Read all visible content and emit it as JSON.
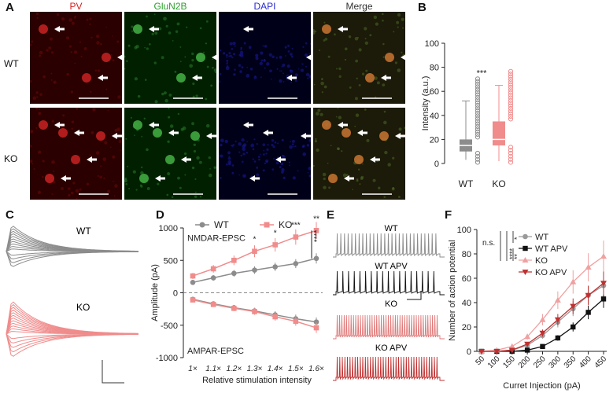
{
  "panels": {
    "A": "A",
    "B": "B",
    "C": "C",
    "D": "D",
    "E": "E",
    "F": "F"
  },
  "panelA": {
    "columns": [
      "PV",
      "GluN2B",
      "DAPI",
      "Merge"
    ],
    "column_colors": [
      "#d42020",
      "#2aa02a",
      "#2b2bd0",
      "#333333"
    ],
    "rows": [
      "WT",
      "KO"
    ]
  },
  "chart_data": [
    {
      "id": "B",
      "type": "box",
      "ylabel": "Intensity (a.u.)",
      "ylim": [
        0,
        100
      ],
      "yticks": [
        0,
        20,
        40,
        60,
        80,
        100
      ],
      "categories": [
        "WT",
        "KO"
      ],
      "series": [
        {
          "name": "WT",
          "color": "#8c8c8c",
          "median": 15,
          "q1": 10,
          "q3": 20,
          "whisker_low": 3,
          "whisker_high": 52
        },
        {
          "name": "KO",
          "color": "#f08c8c",
          "median": 20,
          "q1": 15,
          "q3": 35,
          "whisker_low": 2,
          "whisker_high": 65
        }
      ],
      "annotation": "***"
    },
    {
      "id": "D",
      "type": "line",
      "xlabel": "Relative stimulation intensity",
      "ylabel": "Amplitude (pA)",
      "categories": [
        "1×",
        "1.1×",
        "1.2×",
        "1.3×",
        "1.4×",
        "1.5×",
        "1.6×"
      ],
      "ylim": [
        -1000,
        1000
      ],
      "yticks": [
        -1000,
        -500,
        0,
        500,
        1000
      ],
      "legend": [
        "WT",
        "KO"
      ],
      "series": [
        {
          "name": "WT NMDAR",
          "color": "#8c8c8c",
          "values": [
            160,
            230,
            300,
            350,
            400,
            450,
            530
          ]
        },
        {
          "name": "KO NMDAR",
          "color": "#f08c8c",
          "values": [
            260,
            370,
            500,
            640,
            740,
            860,
            960
          ]
        },
        {
          "name": "WT AMPAR",
          "color": "#8c8c8c",
          "values": [
            -100,
            -170,
            -230,
            -280,
            -340,
            -400,
            -450
          ]
        },
        {
          "name": "KO AMPAR",
          "color": "#f08c8c",
          "values": [
            -110,
            -180,
            -240,
            -290,
            -370,
            -440,
            -540
          ]
        }
      ],
      "annotations": [
        "NMDAR-EPSC",
        "AMPAR-EPSC"
      ],
      "significance": [
        "",
        "",
        "",
        "*",
        "*",
        "***",
        "**"
      ],
      "overall": "****"
    },
    {
      "id": "F",
      "type": "line",
      "xlabel": "Curret Injection (pA)",
      "ylabel": "Number of action potential",
      "x": [
        50,
        100,
        150,
        200,
        250,
        300,
        350,
        400,
        450
      ],
      "ylim": [
        0,
        100
      ],
      "yticks": [
        0,
        20,
        40,
        60,
        80,
        100
      ],
      "series": [
        {
          "name": "WT",
          "color": "#9a9a9a",
          "marker": "circle",
          "values": [
            0,
            0,
            1,
            5,
            13,
            24,
            35,
            46,
            54
          ]
        },
        {
          "name": "WT APV",
          "color": "#111111",
          "marker": "square",
          "values": [
            0,
            0,
            0,
            1,
            4,
            11,
            20,
            32,
            43
          ]
        },
        {
          "name": "KO",
          "color": "#f0a0a0",
          "marker": "triangle-up",
          "values": [
            0,
            1,
            4,
            12,
            26,
            42,
            57,
            69,
            78
          ]
        },
        {
          "name": "KO APV",
          "color": "#c03030",
          "marker": "triangle-down",
          "values": [
            0,
            0,
            1,
            6,
            15,
            26,
            37,
            46,
            56
          ]
        }
      ],
      "significance": [
        "n.s.",
        "****",
        "*",
        "**"
      ]
    }
  ],
  "panelC": {
    "labels": [
      "WT",
      "KO"
    ]
  },
  "panelE": {
    "labels": [
      "WT",
      "WT APV",
      "KO",
      "KO APV"
    ]
  }
}
